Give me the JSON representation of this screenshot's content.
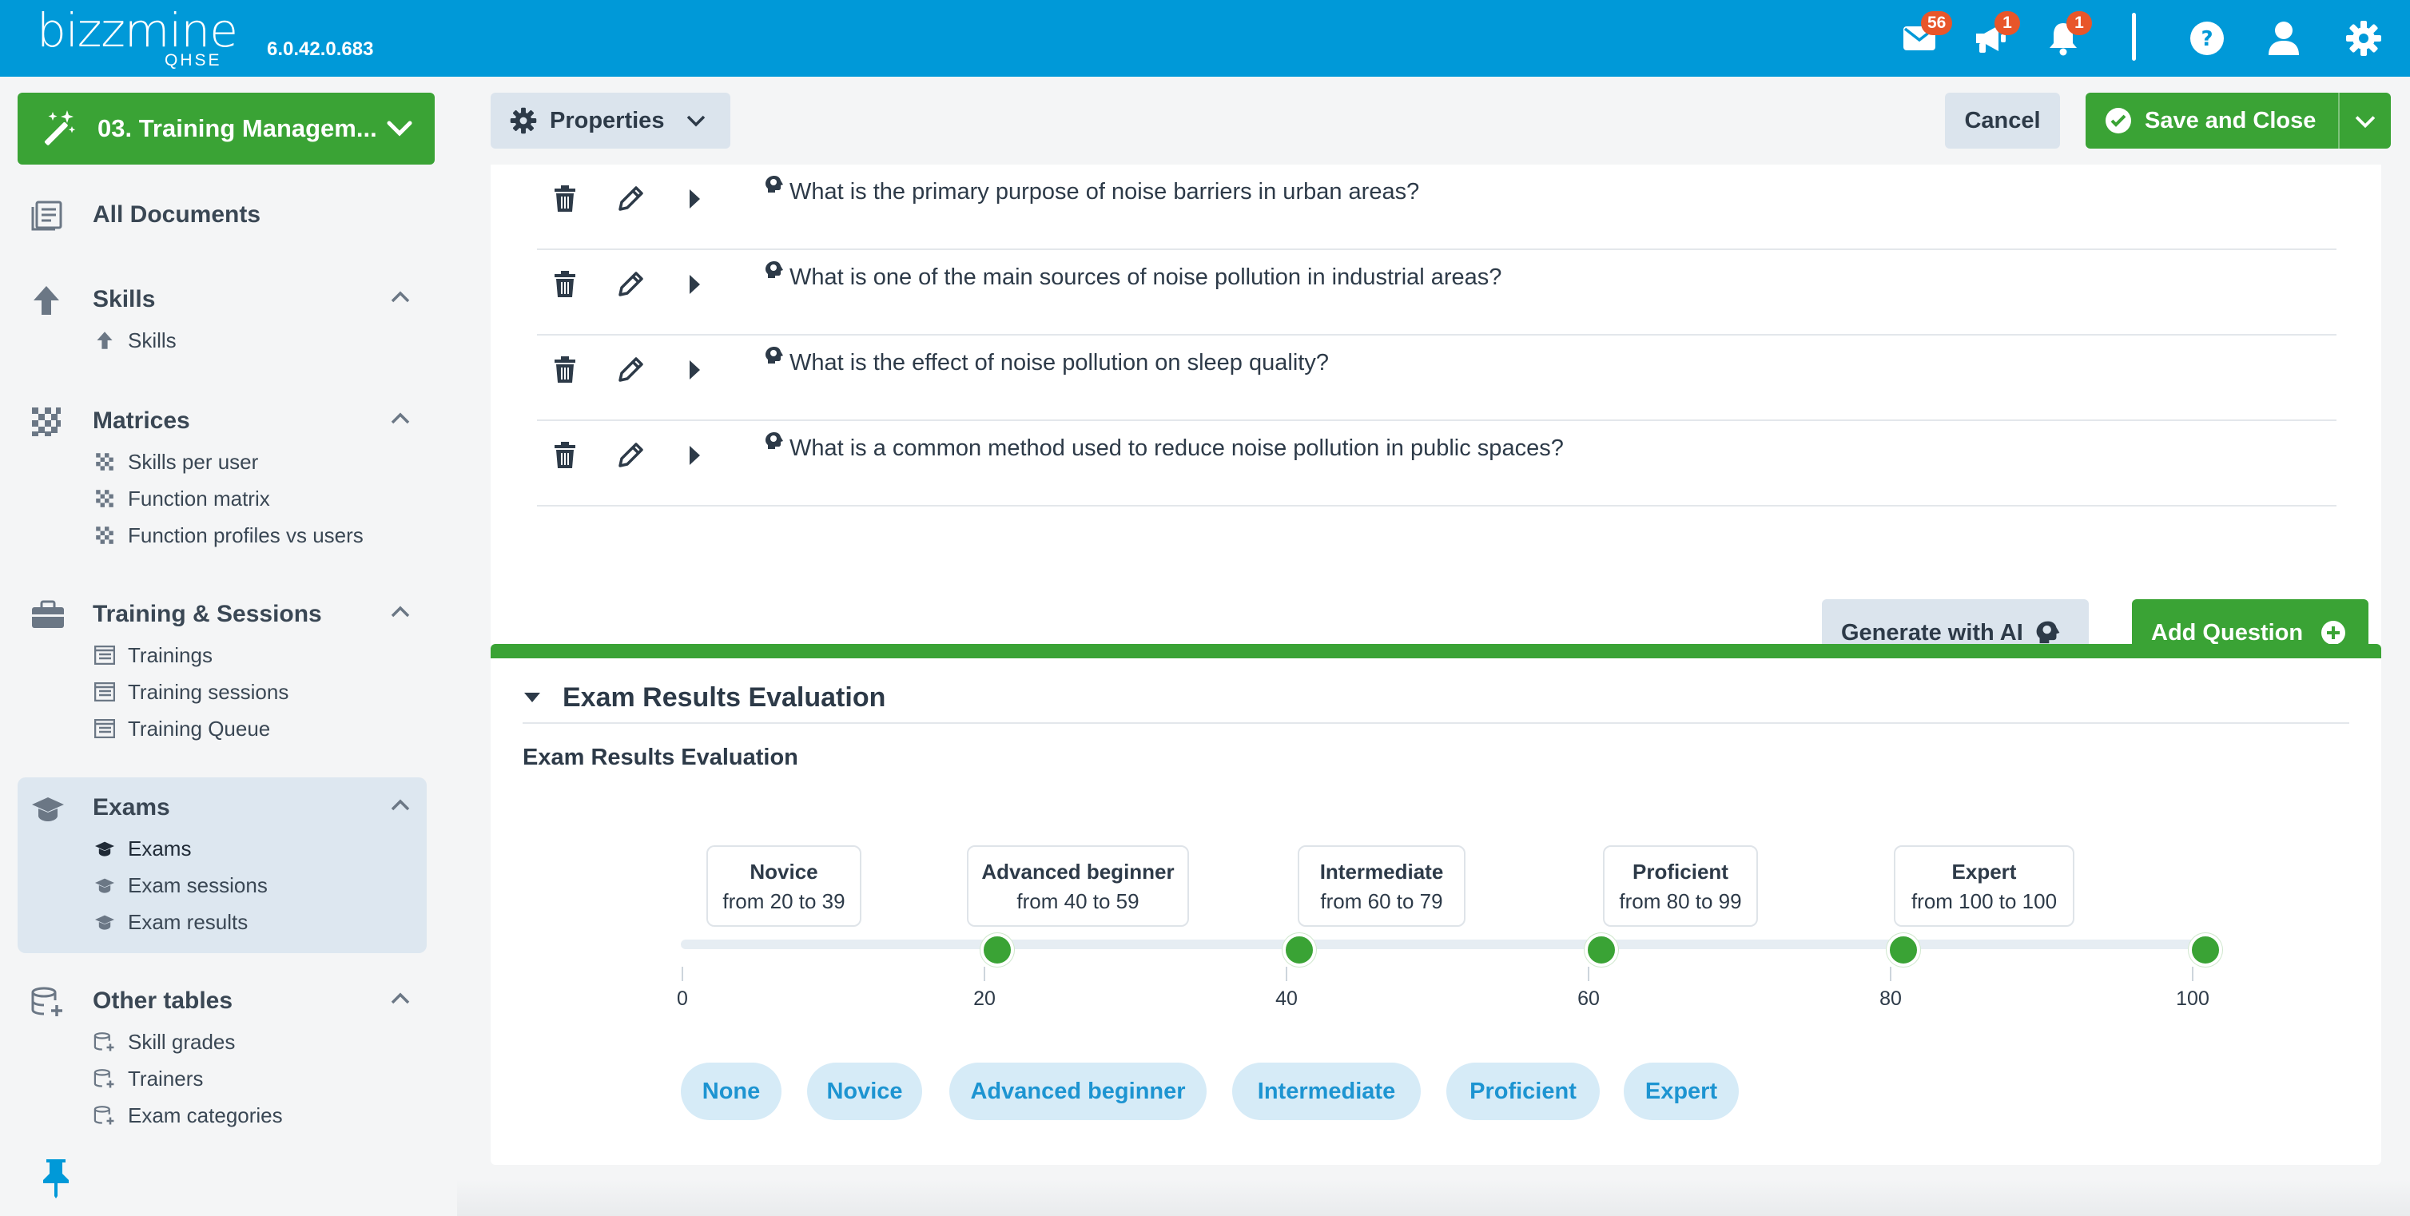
{
  "header": {
    "logo": "bizzmine",
    "logo_sub": "QHSE",
    "version": "6.0.42.0.683",
    "mail_count": "56",
    "announce_count": "1",
    "notify_count": "1",
    "brand_color": "#0099d8"
  },
  "sidebar": {
    "module_label": "03. Training Managem...",
    "all_documents": "All Documents",
    "sections": {
      "skills": {
        "title": "Skills",
        "items": [
          "Skills"
        ]
      },
      "matrices": {
        "title": "Matrices",
        "items": [
          "Skills per user",
          "Function matrix",
          "Function profiles vs users"
        ]
      },
      "training": {
        "title": "Training & Sessions",
        "items": [
          "Trainings",
          "Training sessions",
          "Training Queue"
        ]
      },
      "exams": {
        "title": "Exams",
        "items": [
          "Exams",
          "Exam sessions",
          "Exam results"
        ]
      },
      "other": {
        "title": "Other tables",
        "items": [
          "Skill grades",
          "Trainers",
          "Exam categories"
        ]
      }
    }
  },
  "toolbar": {
    "properties_label": "Properties",
    "cancel_label": "Cancel",
    "save_label": "Save and Close"
  },
  "questions": {
    "items": [
      "What is the primary purpose of noise barriers in urban areas?",
      "What is one of the main sources of noise pollution in industrial areas?",
      "What is the effect of noise pollution on sleep quality?",
      "What is a common method used to reduce noise pollution in public spaces?"
    ],
    "generate_label": "Generate with AI",
    "add_label": "Add Question"
  },
  "evaluation": {
    "section_title": "Exam Results Evaluation",
    "subtitle": "Exam Results Evaluation",
    "levels": [
      {
        "name": "Novice",
        "range": "from 20 to 39",
        "value": 20
      },
      {
        "name": "Advanced beginner",
        "range": "from 40 to 59",
        "value": 40
      },
      {
        "name": "Intermediate",
        "range": "from 60 to 79",
        "value": 60
      },
      {
        "name": "Proficient",
        "range": "from 80 to 99",
        "value": 80
      },
      {
        "name": "Expert",
        "range": "from 100 to 100",
        "value": 100
      }
    ],
    "scale_ticks": [
      "0",
      "20",
      "40",
      "60",
      "80",
      "100"
    ],
    "pills": [
      "None",
      "Novice",
      "Advanced beginner",
      "Intermediate",
      "Proficient",
      "Expert"
    ],
    "accent_color": "#3aa335"
  }
}
